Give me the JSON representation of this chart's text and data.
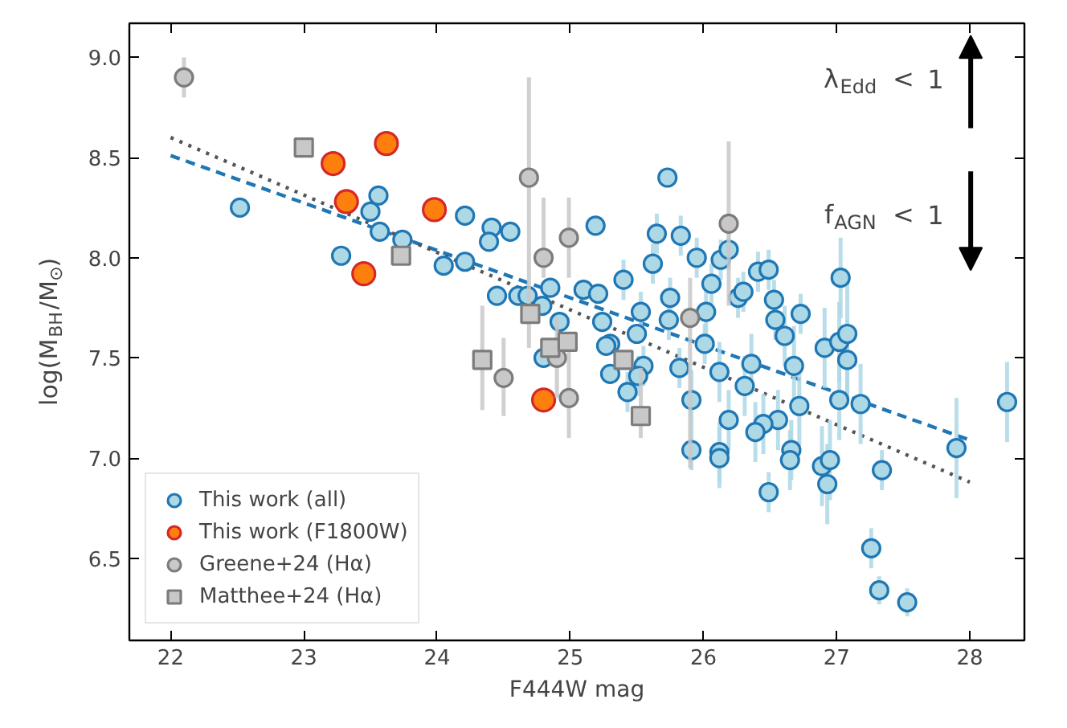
{
  "chart_data": {
    "type": "scatter",
    "xlabel": "F444W mag",
    "ylabel": "log(M$_{BH}$/M$_{⊙}$)",
    "xlim": [
      21.69,
      28.41
    ],
    "ylim": [
      6.09,
      9.17
    ],
    "xticks": [
      22,
      23,
      24,
      25,
      26,
      27,
      28
    ],
    "yticks": [
      {
        "value": 6.5,
        "label": "6.5"
      },
      {
        "value": 7,
        "label": "7.0"
      },
      {
        "value": 7.5,
        "label": "7.5"
      },
      {
        "value": 8,
        "label": "8.0"
      },
      {
        "value": 8.5,
        "label": "8.5"
      },
      {
        "value": 9,
        "label": "9.0"
      }
    ],
    "grid": false,
    "legend": "bottom left",
    "annotations": [
      "λ$_{Edd}$ < 1",
      "f$_{AGN}$ < 1"
    ],
    "series": [
      {
        "type": "line",
        "line_style": "dashed",
        "marker": "none",
        "color": "#1f77b4",
        "x": [
          22,
          28
        ],
        "values": [
          8.51,
          7.09
        ]
      },
      {
        "type": "line",
        "line_style": "dotted",
        "marker": "none",
        "color": "#555555",
        "x": [
          22,
          28
        ],
        "values": [
          8.6,
          6.88
        ]
      },
      {
        "name": "This work (all)",
        "color": "#add8e6",
        "marker": "circle",
        "x": [
          22.52,
          23.28,
          23.56,
          23.5,
          23.57,
          23.74,
          24.05,
          24.21,
          24.21,
          24.41,
          24.39,
          24.55,
          24.45,
          24.61,
          24.68,
          24.85,
          24.79,
          24.92,
          25.1,
          25.19,
          24.8,
          25.21,
          25.75,
          25.53,
          25.24,
          25.3,
          25.27,
          25.5,
          25.74,
          26.02,
          26.26,
          26.53,
          26.54,
          26.73,
          26.61,
          26.01,
          25.55,
          25.51,
          25.3,
          25.43,
          25.82,
          26.12,
          26.36,
          26.68,
          26.91,
          27.02,
          27.08,
          27.08,
          26.31,
          25.91,
          26.72,
          27.02,
          27.18,
          26.19,
          26.56,
          26.45,
          26.39,
          25.91,
          26.12,
          26.12,
          26.66,
          26.65,
          26.89,
          26.95,
          26.93,
          26.49,
          27.34,
          27.9,
          28.28,
          27.26,
          27.32,
          27.53,
          25.73,
          25.65,
          25.83,
          25.62,
          25.95,
          26.06,
          26.13,
          26.19,
          25.4,
          26.3,
          26.41,
          26.49,
          27.03
        ],
        "values": [
          8.25,
          8.01,
          8.31,
          8.23,
          8.13,
          8.09,
          7.96,
          7.98,
          8.21,
          8.15,
          8.08,
          8.13,
          7.81,
          7.81,
          7.81,
          7.85,
          7.76,
          7.68,
          7.84,
          8.16,
          7.5,
          7.82,
          7.8,
          7.73,
          7.68,
          7.57,
          7.56,
          7.62,
          7.69,
          7.73,
          7.8,
          7.79,
          7.69,
          7.72,
          7.61,
          7.57,
          7.46,
          7.41,
          7.42,
          7.33,
          7.45,
          7.43,
          7.47,
          7.46,
          7.55,
          7.58,
          7.62,
          7.49,
          7.36,
          7.29,
          7.26,
          7.29,
          7.27,
          7.19,
          7.19,
          7.17,
          7.13,
          7.04,
          7.03,
          7.0,
          7.04,
          6.99,
          6.96,
          6.99,
          6.87,
          6.83,
          6.94,
          7.05,
          7.28,
          6.55,
          6.34,
          6.28,
          8.4,
          8.12,
          8.11,
          7.97,
          8.0,
          7.87,
          7.99,
          8.04,
          7.89,
          7.83,
          7.93,
          7.94,
          7.9
        ],
        "errors": [
          null,
          null,
          null,
          null,
          null,
          null,
          null,
          null,
          null,
          null,
          null,
          null,
          null,
          null,
          null,
          null,
          null,
          null,
          null,
          null,
          null,
          null,
          0.1,
          0.1,
          null,
          null,
          null,
          null,
          0.1,
          0.15,
          0.1,
          0.1,
          0.1,
          0.1,
          0.15,
          0.1,
          0.1,
          0.1,
          null,
          0.1,
          0.1,
          0.15,
          0.15,
          0.2,
          0.2,
          0.2,
          0.3,
          0.2,
          0.15,
          0.15,
          0.2,
          0.2,
          0.2,
          0.15,
          0.15,
          0.15,
          0.15,
          0.1,
          0.15,
          0.15,
          0.15,
          0.15,
          0.2,
          0.2,
          0.2,
          0.1,
          0.1,
          0.25,
          0.2,
          0.1,
          0.07,
          0.07,
          null,
          0.1,
          0.1,
          0.1,
          0.1,
          0.1,
          0.1,
          0.1,
          0.1,
          0.1,
          0.1,
          0.1,
          0.2
        ]
      },
      {
        "name": "This work (F1800W)",
        "color": "#ff7f0e",
        "marker": "circle",
        "x": [
          23.22,
          23.32,
          23.62,
          23.45,
          23.98,
          24.8
        ],
        "values": [
          8.47,
          8.28,
          8.57,
          7.92,
          8.24,
          7.29
        ]
      },
      {
        "name": "Greene+24 (Hα)",
        "color": "#c8c8c8",
        "marker": "circle",
        "x": [
          22.1,
          24.69,
          24.8,
          24.99,
          24.5,
          24.99,
          24.9,
          25.9,
          26.19
        ],
        "values": [
          8.9,
          8.4,
          8.0,
          8.1,
          7.4,
          7.3,
          7.5,
          7.7,
          8.17
        ],
        "errors": [
          [
            8.8,
            9.0
          ],
          [
            7.55,
            8.9
          ],
          [
            7.9,
            8.3
          ],
          [
            7.9,
            8.3
          ],
          [
            7.21,
            7.6
          ],
          [
            7.1,
            7.6
          ],
          [
            7.3,
            7.7
          ],
          [
            6.95,
            7.9
          ],
          [
            7.76,
            8.58
          ]
        ]
      },
      {
        "name": "Matthee+24 (Hα)",
        "color": "#c8c8c8",
        "marker": "square",
        "x": [
          23.0,
          23.73,
          24.34,
          24.7,
          24.85,
          24.98,
          25.4,
          25.53
        ],
        "values": [
          8.55,
          8.01,
          7.49,
          7.72,
          7.55,
          7.58,
          7.49,
          7.21
        ],
        "errors": [
          null,
          null,
          [
            7.24,
            7.76
          ],
          null,
          null,
          null,
          null,
          [
            7.1,
            7.45
          ]
        ]
      }
    ]
  }
}
